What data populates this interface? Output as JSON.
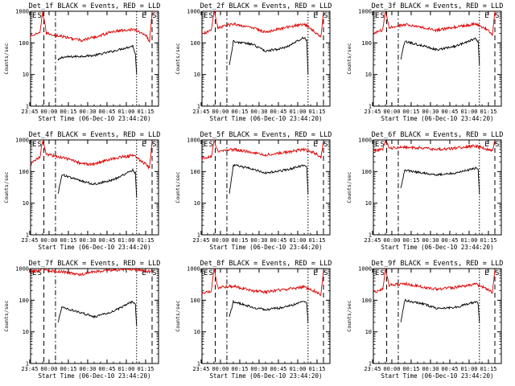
{
  "chart_data": [
    {
      "type": "line",
      "title": "Det_1f BLACK = Events, RED = LLD",
      "ylabel": "Counts/sec",
      "xlabel": "Start Time (06-Dec-10 23:44:20)",
      "yscale": "log",
      "ylim": [
        1,
        1000
      ],
      "y_tick_labels": [
        "1",
        "10",
        "100",
        "1000"
      ],
      "x_tick_labels": [
        "23:45",
        "00:00",
        "00:15",
        "00:30",
        "00:45",
        "01:00",
        "01:15"
      ],
      "markers": [
        "E",
        "S",
        "E",
        "S"
      ],
      "series": [
        {
          "name": "Events",
          "color": "#000000",
          "start": [
            "00:07",
            28
          ],
          "points": [
            [
              "00:10",
              35
            ],
            [
              "00:25",
              38
            ],
            [
              "00:35",
              40
            ],
            [
              "00:50",
              55
            ],
            [
              "01:05",
              80
            ],
            [
              "01:07",
              45
            ],
            [
              "01:08",
              10
            ]
          ]
        },
        {
          "name": "LLD",
          "color": "#dd0000",
          "start": [
            "23:44",
            160
          ],
          "points": [
            [
              "23:53",
              200
            ],
            [
              "23:55",
              1000
            ],
            [
              "23:58",
              200
            ],
            [
              "00:10",
              160
            ],
            [
              "00:25",
              120
            ],
            [
              "00:35",
              150
            ],
            [
              "00:50",
              230
            ],
            [
              "01:05",
              270
            ],
            [
              "01:15",
              180
            ],
            [
              "01:18",
              110
            ],
            [
              "01:20",
              1000
            ]
          ]
        }
      ]
    },
    {
      "type": "line",
      "title": "Det_2f BLACK = Events, RED = LLD",
      "ylabel": "Counts/sec",
      "xlabel": "Start Time (06-Dec-10 23:44:20)",
      "yscale": "log",
      "ylim": [
        1,
        1000
      ],
      "y_tick_labels": [
        "1",
        "10",
        "100",
        "1000"
      ],
      "x_tick_labels": [
        "23:45",
        "00:00",
        "00:15",
        "00:30",
        "00:45",
        "01:00",
        "01:15"
      ],
      "markers": [
        "E",
        "S",
        "E",
        "S"
      ],
      "series": [
        {
          "name": "Events",
          "color": "#000000",
          "start": [
            "00:07",
            20
          ],
          "points": [
            [
              "00:10",
              110
            ],
            [
              "00:25",
              90
            ],
            [
              "00:35",
              55
            ],
            [
              "00:50",
              70
            ],
            [
              "01:05",
              150
            ],
            [
              "01:07",
              120
            ],
            [
              "01:08",
              10
            ]
          ]
        },
        {
          "name": "LLD",
          "color": "#dd0000",
          "start": [
            "23:44",
            180
          ],
          "points": [
            [
              "23:53",
              250
            ],
            [
              "23:55",
              1000
            ],
            [
              "23:58",
              300
            ],
            [
              "00:10",
              400
            ],
            [
              "00:25",
              300
            ],
            [
              "00:35",
              220
            ],
            [
              "00:50",
              300
            ],
            [
              "01:05",
              400
            ],
            [
              "01:15",
              200
            ],
            [
              "01:18",
              150
            ],
            [
              "01:20",
              1000
            ]
          ]
        }
      ]
    },
    {
      "type": "line",
      "title": "Det_3f BLACK = Events, RED = LLD",
      "ylabel": "Counts/sec",
      "xlabel": "Start Time (06-Dec-10 23:44:20)",
      "yscale": "log",
      "ylim": [
        1,
        1000
      ],
      "y_tick_labels": [
        "1",
        "10",
        "100",
        "1000"
      ],
      "x_tick_labels": [
        "23:45",
        "00:00",
        "00:15",
        "00:30",
        "00:45",
        "01:00",
        "01:15"
      ],
      "markers": [
        "E",
        "S",
        "E",
        "S"
      ],
      "series": [
        {
          "name": "Events",
          "color": "#000000",
          "start": [
            "00:07",
            30
          ],
          "points": [
            [
              "00:10",
              110
            ],
            [
              "00:25",
              80
            ],
            [
              "00:35",
              60
            ],
            [
              "00:50",
              80
            ],
            [
              "01:05",
              140
            ],
            [
              "01:07",
              110
            ],
            [
              "01:08",
              20
            ]
          ]
        },
        {
          "name": "LLD",
          "color": "#dd0000",
          "start": [
            "23:44",
            180
          ],
          "points": [
            [
              "23:53",
              260
            ],
            [
              "23:55",
              1000
            ],
            [
              "23:58",
              300
            ],
            [
              "00:10",
              380
            ],
            [
              "00:25",
              300
            ],
            [
              "00:35",
              250
            ],
            [
              "00:50",
              320
            ],
            [
              "01:05",
              400
            ],
            [
              "01:15",
              250
            ],
            [
              "01:18",
              180
            ],
            [
              "01:20",
              1000
            ]
          ]
        }
      ]
    },
    {
      "type": "line",
      "title": "Det_4f BLACK = Events, RED = LLD",
      "ylabel": "Counts/sec",
      "xlabel": "Start Time (06-Dec-10 23:44:20)",
      "yscale": "log",
      "ylim": [
        1,
        1000
      ],
      "y_tick_labels": [
        "1",
        "10",
        "100",
        "1000"
      ],
      "x_tick_labels": [
        "23:45",
        "00:00",
        "00:15",
        "00:30",
        "00:45",
        "01:00",
        "01:15"
      ],
      "markers": [
        "E",
        "S",
        "E",
        "S"
      ],
      "series": [
        {
          "name": "Events",
          "color": "#000000",
          "start": [
            "00:07",
            20
          ],
          "points": [
            [
              "00:10",
              80
            ],
            [
              "00:25",
              50
            ],
            [
              "00:35",
              40
            ],
            [
              "00:50",
              55
            ],
            [
              "01:05",
              110
            ],
            [
              "01:07",
              90
            ],
            [
              "01:08",
              15
            ]
          ]
        },
        {
          "name": "LLD",
          "color": "#dd0000",
          "start": [
            "23:44",
            150
          ],
          "points": [
            [
              "23:53",
              300
            ],
            [
              "23:55",
              900
            ],
            [
              "23:58",
              350
            ],
            [
              "00:10",
              280
            ],
            [
              "00:25",
              180
            ],
            [
              "00:35",
              170
            ],
            [
              "00:50",
              260
            ],
            [
              "01:05",
              330
            ],
            [
              "01:15",
              170
            ],
            [
              "01:18",
              130
            ],
            [
              "01:20",
              900
            ]
          ]
        }
      ]
    },
    {
      "type": "line",
      "title": "Det_5f BLACK = Events, RED = LLD",
      "ylabel": "Counts/sec",
      "xlabel": "Start Time (06-Dec-10 23:44:20)",
      "yscale": "log",
      "ylim": [
        1,
        1000
      ],
      "y_tick_labels": [
        "1",
        "10",
        "100",
        "1000"
      ],
      "x_tick_labels": [
        "23:45",
        "00:00",
        "00:15",
        "00:30",
        "00:45",
        "01:00",
        "01:15"
      ],
      "markers": [
        "E",
        "S",
        "E",
        "S"
      ],
      "series": [
        {
          "name": "Events",
          "color": "#000000",
          "start": [
            "00:07",
            20
          ],
          "points": [
            [
              "00:10",
              160
            ],
            [
              "00:25",
              120
            ],
            [
              "00:35",
              90
            ],
            [
              "00:50",
              110
            ],
            [
              "01:05",
              160
            ],
            [
              "01:07",
              130
            ],
            [
              "01:08",
              20
            ]
          ]
        },
        {
          "name": "LLD",
          "color": "#dd0000",
          "start": [
            "23:44",
            250
          ],
          "points": [
            [
              "23:53",
              300
            ],
            [
              "23:55",
              1000
            ],
            [
              "23:58",
              450
            ],
            [
              "00:10",
              500
            ],
            [
              "00:25",
              400
            ],
            [
              "00:35",
              330
            ],
            [
              "00:50",
              400
            ],
            [
              "01:05",
              500
            ],
            [
              "01:15",
              350
            ],
            [
              "01:18",
              280
            ],
            [
              "01:20",
              900
            ]
          ]
        }
      ]
    },
    {
      "type": "line",
      "title": "Det_6f BLACK = Events, RED = LLD",
      "ylabel": "Counts/sec",
      "xlabel": "Start Time (06-Dec-10 23:44:20)",
      "yscale": "log",
      "ylim": [
        1,
        1000
      ],
      "y_tick_labels": [
        "1",
        "10",
        "100",
        "1000"
      ],
      "x_tick_labels": [
        "23:45",
        "00:00",
        "00:15",
        "00:30",
        "00:45",
        "01:00",
        "01:15"
      ],
      "markers": [
        "E",
        "S",
        "E",
        "S"
      ],
      "series": [
        {
          "name": "Events",
          "color": "#000000",
          "start": [
            "00:07",
            30
          ],
          "points": [
            [
              "00:10",
              110
            ],
            [
              "00:25",
              90
            ],
            [
              "00:35",
              80
            ],
            [
              "00:50",
              90
            ],
            [
              "01:05",
              130
            ],
            [
              "01:07",
              110
            ],
            [
              "01:08",
              20
            ]
          ]
        },
        {
          "name": "LLD",
          "color": "#dd0000",
          "start": [
            "23:44",
            450
          ],
          "points": [
            [
              "23:53",
              500
            ],
            [
              "23:55",
              1000
            ],
            [
              "23:58",
              550
            ],
            [
              "00:10",
              600
            ],
            [
              "00:25",
              550
            ],
            [
              "00:35",
              500
            ],
            [
              "00:50",
              550
            ],
            [
              "01:05",
              650
            ],
            [
              "01:15",
              500
            ],
            [
              "01:18",
              450
            ],
            [
              "01:20",
              900
            ]
          ]
        }
      ]
    },
    {
      "type": "line",
      "title": "Det_7f BLACK = Events, RED = LLD",
      "ylabel": "Counts/sec",
      "xlabel": "Start Time (06-Dec-10 23:44:20)",
      "yscale": "log",
      "ylim": [
        1,
        1000
      ],
      "y_tick_labels": [
        "1",
        "10",
        "100",
        "1000"
      ],
      "x_tick_labels": [
        "23:45",
        "00:00",
        "00:15",
        "00:30",
        "00:45",
        "01:00",
        "01:15"
      ],
      "markers": [
        "E",
        "S",
        "E",
        "S"
      ],
      "series": [
        {
          "name": "Events",
          "color": "#000000",
          "start": [
            "00:07",
            20
          ],
          "points": [
            [
              "00:10",
              60
            ],
            [
              "00:25",
              40
            ],
            [
              "00:35",
              30
            ],
            [
              "00:50",
              45
            ],
            [
              "01:05",
              90
            ],
            [
              "01:07",
              70
            ],
            [
              "01:08",
              15
            ]
          ]
        },
        {
          "name": "LLD",
          "color": "#dd0000",
          "start": [
            "23:44",
            800
          ],
          "points": [
            [
              "23:53",
              850
            ],
            [
              "23:55",
              1000
            ],
            [
              "23:58",
              850
            ],
            [
              "00:10",
              800
            ],
            [
              "00:25",
              650
            ],
            [
              "00:35",
              800
            ],
            [
              "00:50",
              900
            ],
            [
              "01:05",
              950
            ],
            [
              "01:15",
              850
            ],
            [
              "01:18",
              800
            ],
            [
              "01:20",
              1000
            ]
          ]
        }
      ]
    },
    {
      "type": "line",
      "title": "Det_8f BLACK = Events, RED = LLD",
      "ylabel": "Counts/sec",
      "xlabel": "Start Time (06-Dec-10 23:44:20)",
      "yscale": "log",
      "ylim": [
        1,
        1000
      ],
      "y_tick_labels": [
        "1",
        "10",
        "100",
        "1000"
      ],
      "x_tick_labels": [
        "23:45",
        "00:00",
        "00:15",
        "00:30",
        "00:45",
        "01:00",
        "01:15"
      ],
      "markers": [
        "E",
        "S",
        "E",
        "S"
      ],
      "series": [
        {
          "name": "Events",
          "color": "#000000",
          "start": [
            "00:07",
            30
          ],
          "points": [
            [
              "00:10",
              90
            ],
            [
              "00:25",
              60
            ],
            [
              "00:35",
              50
            ],
            [
              "00:50",
              60
            ],
            [
              "01:05",
              90
            ],
            [
              "01:07",
              80
            ],
            [
              "01:08",
              20
            ]
          ]
        },
        {
          "name": "LLD",
          "color": "#dd0000",
          "start": [
            "23:44",
            150
          ],
          "points": [
            [
              "23:53",
              200
            ],
            [
              "23:55",
              1000
            ],
            [
              "23:58",
              250
            ],
            [
              "00:10",
              280
            ],
            [
              "00:25",
              200
            ],
            [
              "00:35",
              180
            ],
            [
              "00:50",
              220
            ],
            [
              "01:05",
              260
            ],
            [
              "01:15",
              180
            ],
            [
              "01:18",
              150
            ],
            [
              "01:20",
              900
            ]
          ]
        }
      ]
    },
    {
      "type": "line",
      "title": "Det_9f BLACK = Events, RED = LLD",
      "ylabel": "Counts/sec",
      "xlabel": "Start Time (06-Dec-10 23:44:20)",
      "yscale": "log",
      "ylim": [
        1,
        1000
      ],
      "y_tick_labels": [
        "1",
        "10",
        "100",
        "1000"
      ],
      "x_tick_labels": [
        "23:45",
        "00:00",
        "00:15",
        "00:30",
        "00:45",
        "01:00",
        "01:15"
      ],
      "markers": [
        "E",
        "S",
        "E",
        "S"
      ],
      "series": [
        {
          "name": "Events",
          "color": "#000000",
          "start": [
            "00:07",
            20
          ],
          "points": [
            [
              "00:10",
              100
            ],
            [
              "00:25",
              75
            ],
            [
              "00:35",
              55
            ],
            [
              "00:50",
              60
            ],
            [
              "01:05",
              90
            ],
            [
              "01:07",
              80
            ],
            [
              "01:08",
              20
            ]
          ]
        },
        {
          "name": "LLD",
          "color": "#dd0000",
          "start": [
            "23:44",
            170
          ],
          "points": [
            [
              "23:53",
              220
            ],
            [
              "23:55",
              1000
            ],
            [
              "23:58",
              300
            ],
            [
              "00:10",
              330
            ],
            [
              "00:25",
              260
            ],
            [
              "00:35",
              220
            ],
            [
              "00:50",
              260
            ],
            [
              "01:05",
              320
            ],
            [
              "01:15",
              220
            ],
            [
              "01:18",
              180
            ],
            [
              "01:20",
              900
            ]
          ]
        }
      ]
    }
  ]
}
